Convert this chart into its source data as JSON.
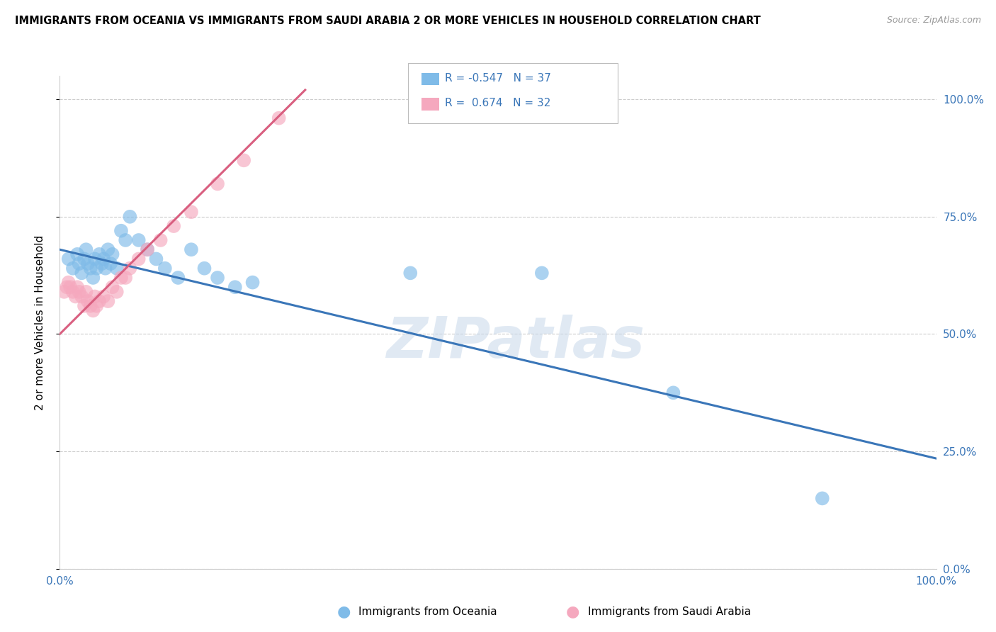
{
  "title": "IMMIGRANTS FROM OCEANIA VS IMMIGRANTS FROM SAUDI ARABIA 2 OR MORE VEHICLES IN HOUSEHOLD CORRELATION CHART",
  "source": "Source: ZipAtlas.com",
  "ylabel": "2 or more Vehicles in Household",
  "xlim": [
    0.0,
    1.0
  ],
  "ylim": [
    0.0,
    1.05
  ],
  "ytick_labels": [
    "0.0%",
    "25.0%",
    "50.0%",
    "75.0%",
    "100.0%"
  ],
  "ytick_values": [
    0.0,
    0.25,
    0.5,
    0.75,
    1.0
  ],
  "xtick_labels": [
    "0.0%",
    "100.0%"
  ],
  "xtick_values": [
    0.0,
    1.0
  ],
  "legend_label1": "Immigrants from Oceania",
  "legend_label2": "Immigrants from Saudi Arabia",
  "R1": "-0.547",
  "N1": "37",
  "R2": "0.674",
  "N2": "32",
  "color_blue": "#7fbbe8",
  "color_pink": "#f5a8be",
  "line_color_blue": "#3a76b8",
  "line_color_pink": "#d95f80",
  "watermark": "ZIPatlas",
  "blue_x": [
    0.01,
    0.015,
    0.02,
    0.022,
    0.025,
    0.028,
    0.03,
    0.032,
    0.035,
    0.038,
    0.04,
    0.042,
    0.045,
    0.048,
    0.05,
    0.052,
    0.055,
    0.058,
    0.06,
    0.065,
    0.07,
    0.075,
    0.08,
    0.09,
    0.1,
    0.11,
    0.12,
    0.135,
    0.15,
    0.165,
    0.18,
    0.2,
    0.22,
    0.4,
    0.55,
    0.7,
    0.87
  ],
  "blue_y": [
    0.66,
    0.64,
    0.67,
    0.65,
    0.63,
    0.66,
    0.68,
    0.65,
    0.64,
    0.62,
    0.66,
    0.64,
    0.67,
    0.65,
    0.66,
    0.64,
    0.68,
    0.65,
    0.67,
    0.64,
    0.72,
    0.7,
    0.75,
    0.7,
    0.68,
    0.66,
    0.64,
    0.62,
    0.68,
    0.64,
    0.62,
    0.6,
    0.61,
    0.63,
    0.63,
    0.375,
    0.15
  ],
  "pink_x": [
    0.005,
    0.008,
    0.01,
    0.012,
    0.015,
    0.018,
    0.02,
    0.022,
    0.025,
    0.028,
    0.03,
    0.032,
    0.035,
    0.038,
    0.04,
    0.042,
    0.045,
    0.05,
    0.055,
    0.06,
    0.065,
    0.07,
    0.075,
    0.08,
    0.09,
    0.1,
    0.115,
    0.13,
    0.15,
    0.18,
    0.21,
    0.25
  ],
  "pink_y": [
    0.59,
    0.6,
    0.61,
    0.6,
    0.59,
    0.58,
    0.6,
    0.59,
    0.58,
    0.56,
    0.59,
    0.57,
    0.56,
    0.55,
    0.58,
    0.56,
    0.57,
    0.58,
    0.57,
    0.6,
    0.59,
    0.62,
    0.62,
    0.64,
    0.66,
    0.68,
    0.7,
    0.73,
    0.76,
    0.82,
    0.87,
    0.96
  ],
  "blue_line_x0": 0.0,
  "blue_line_x1": 1.0,
  "blue_line_y0": 0.68,
  "blue_line_y1": 0.235,
  "pink_line_x0": 0.0,
  "pink_line_x1": 0.28,
  "pink_line_y0": 0.5,
  "pink_line_y1": 1.02
}
